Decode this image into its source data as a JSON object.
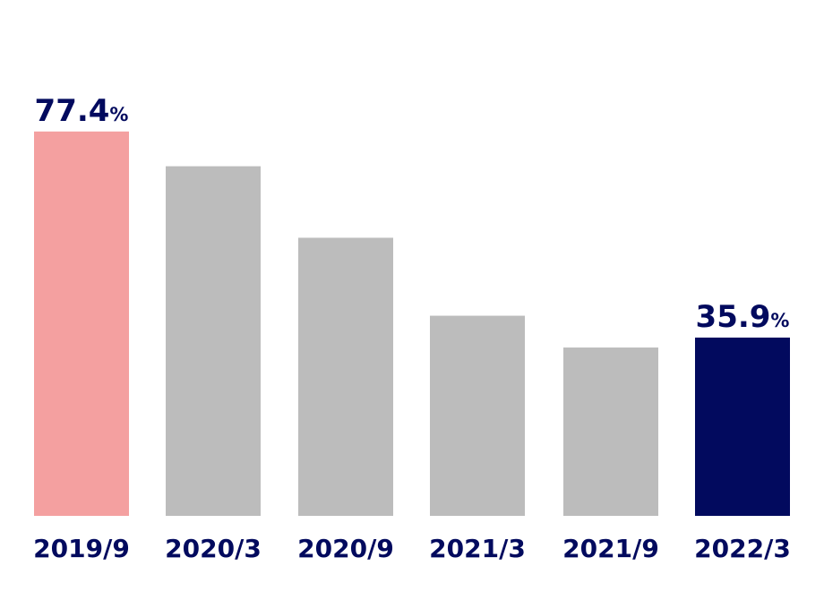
{
  "chart_data": {
    "type": "bar",
    "categories": [
      "2019/9",
      "2020/3",
      "2020/9",
      "2021/3",
      "2021/9",
      "2022/3"
    ],
    "values": [
      77.4,
      70.4,
      56.0,
      40.3,
      33.9,
      35.9
    ],
    "ylim": [
      0,
      80
    ],
    "grid": false,
    "legend": "none",
    "data_labels": [
      {
        "category": "2019/9",
        "value": "77.4",
        "unit": "%"
      },
      {
        "category": "2022/3",
        "value": "35.9",
        "unit": "%"
      }
    ],
    "colors": {
      "highlight_start": "#f4a0a0",
      "highlight_end": "#020a5e",
      "default": "#bcbcbc",
      "text": "#020a5e"
    }
  }
}
